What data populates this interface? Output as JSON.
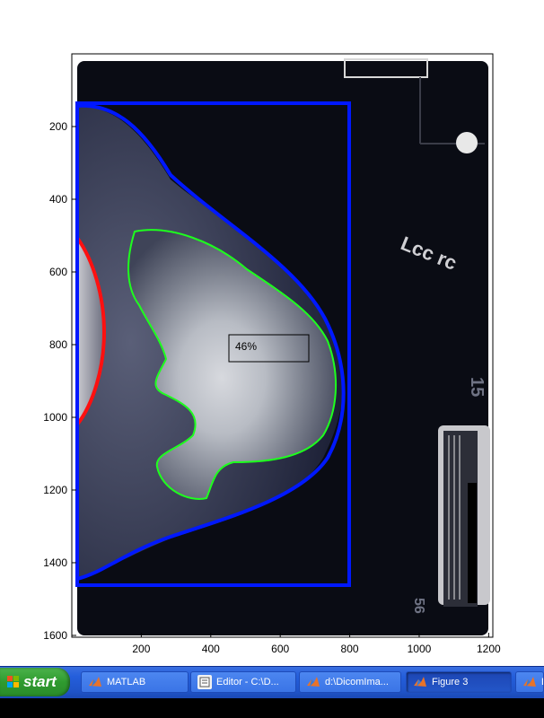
{
  "figure": {
    "annotation_text": "46%",
    "film_markers": [
      "Lcc rc",
      "15",
      "56"
    ],
    "y_ticks": [
      {
        "value": 200,
        "label": "200"
      },
      {
        "value": 400,
        "label": "400"
      },
      {
        "value": 600,
        "label": "600"
      },
      {
        "value": 800,
        "label": "800"
      },
      {
        "value": 1000,
        "label": "1000"
      },
      {
        "value": 1200,
        "label": "1200"
      },
      {
        "value": 1400,
        "label": "1400"
      },
      {
        "value": 1600,
        "label": "1600"
      }
    ],
    "x_ticks": [
      {
        "value": 200,
        "label": "200"
      },
      {
        "value": 400,
        "label": "400"
      },
      {
        "value": 600,
        "label": "600"
      },
      {
        "value": 800,
        "label": "800"
      },
      {
        "value": 1000,
        "label": "1000"
      },
      {
        "value": 1200,
        "label": "1200"
      }
    ],
    "colors": {
      "roi_box": "#0018ff",
      "breast_outline": "#0018ff",
      "dense_outline": "#1eff1e",
      "pectoral": "#ff1010",
      "annotation_box": "#000000"
    }
  },
  "taskbar": {
    "start_label": "start",
    "tasks": [
      {
        "label": "MATLAB",
        "icon": "matlab-icon"
      },
      {
        "label": "Editor - C:\\D...",
        "icon": "editor-icon"
      },
      {
        "label": "d:\\DicomIma...",
        "icon": "matlab-icon"
      },
      {
        "label": "Figure 3",
        "icon": "matlab-icon",
        "active": true
      },
      {
        "label": "E",
        "icon": "matlab-icon"
      }
    ]
  }
}
